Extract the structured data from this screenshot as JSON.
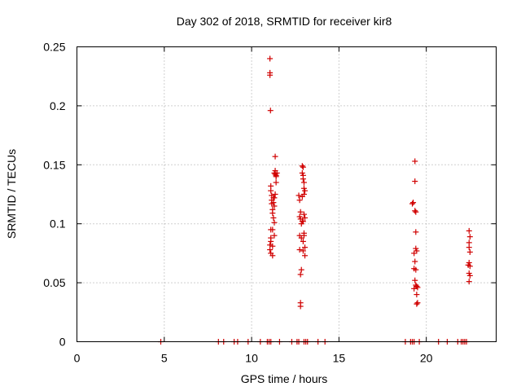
{
  "chart_data": {
    "type": "scatter",
    "title": "Day 302 of 2018, SRMTID for receiver kir8",
    "xlabel": "GPS time / hours",
    "ylabel": "SRMTID / TECUs",
    "xlim": [
      0,
      24
    ],
    "ylim": [
      0,
      0.25
    ],
    "xticks": [
      0,
      5,
      10,
      15,
      20
    ],
    "yticks": [
      0,
      0.05,
      0.1,
      0.15,
      0.2,
      0.25
    ],
    "xtick_labels": [
      "0",
      "5",
      "10",
      "15",
      "20"
    ],
    "ytick_labels": [
      "0",
      "0.05",
      "0.1",
      "0.15",
      "0.2",
      "0.25"
    ],
    "grid": true,
    "marker": "+",
    "color": "#d00000",
    "series": [
      {
        "name": "kir8",
        "points": [
          [
            4.8,
            0
          ],
          [
            8.1,
            0
          ],
          [
            8.4,
            0
          ],
          [
            9.0,
            0
          ],
          [
            9.2,
            0
          ],
          [
            9.8,
            0
          ],
          [
            10.5,
            0
          ],
          [
            10.9,
            0
          ],
          [
            11.0,
            0
          ],
          [
            11.1,
            0
          ],
          [
            11.6,
            0
          ],
          [
            12.3,
            0
          ],
          [
            12.6,
            0
          ],
          [
            12.7,
            0
          ],
          [
            13.0,
            0
          ],
          [
            13.1,
            0
          ],
          [
            13.2,
            0
          ],
          [
            13.8,
            0
          ],
          [
            14.2,
            0
          ],
          [
            18.8,
            0
          ],
          [
            19.1,
            0
          ],
          [
            19.2,
            0
          ],
          [
            19.3,
            0
          ],
          [
            19.6,
            0
          ],
          [
            20.7,
            0
          ],
          [
            21.2,
            0
          ],
          [
            21.8,
            0
          ],
          [
            22.0,
            0
          ],
          [
            22.1,
            0
          ],
          [
            22.2,
            0
          ],
          [
            22.3,
            0
          ],
          [
            11.05,
            0.24
          ],
          [
            11.05,
            0.228
          ],
          [
            11.05,
            0.226
          ],
          [
            11.08,
            0.196
          ],
          [
            11.1,
            0.132
          ],
          [
            11.1,
            0.128
          ],
          [
            11.15,
            0.124
          ],
          [
            11.15,
            0.12
          ],
          [
            11.15,
            0.117
          ],
          [
            11.2,
            0.112
          ],
          [
            11.2,
            0.109
          ],
          [
            11.1,
            0.095
          ],
          [
            11.1,
            0.088
          ],
          [
            11.1,
            0.085
          ],
          [
            11.05,
            0.082
          ],
          [
            11.05,
            0.078
          ],
          [
            11.1,
            0.075
          ],
          [
            11.2,
            0.073
          ],
          [
            11.25,
            0.122
          ],
          [
            11.25,
            0.118
          ],
          [
            11.3,
            0.115
          ],
          [
            11.25,
            0.105
          ],
          [
            11.3,
            0.101
          ],
          [
            11.2,
            0.095
          ],
          [
            11.3,
            0.09
          ],
          [
            11.35,
            0.157
          ],
          [
            11.35,
            0.145
          ],
          [
            11.3,
            0.143
          ],
          [
            11.35,
            0.142
          ],
          [
            11.4,
            0.141
          ],
          [
            11.4,
            0.14
          ],
          [
            11.45,
            0.143
          ],
          [
            11.4,
            0.135
          ],
          [
            11.35,
            0.125
          ],
          [
            11.3,
            0.122
          ],
          [
            11.2,
            0.081
          ],
          [
            12.7,
            0.124
          ],
          [
            12.75,
            0.12
          ],
          [
            12.8,
            0.11
          ],
          [
            12.75,
            0.106
          ],
          [
            12.8,
            0.104
          ],
          [
            12.9,
            0.102
          ],
          [
            12.85,
            0.1
          ],
          [
            12.75,
            0.09
          ],
          [
            12.85,
            0.088
          ],
          [
            12.95,
            0.085
          ],
          [
            12.75,
            0.078
          ],
          [
            12.85,
            0.061
          ],
          [
            12.8,
            0.057
          ],
          [
            12.8,
            0.033
          ],
          [
            12.8,
            0.03
          ],
          [
            12.9,
            0.149
          ],
          [
            12.95,
            0.148
          ],
          [
            12.9,
            0.143
          ],
          [
            12.95,
            0.141
          ],
          [
            12.95,
            0.138
          ],
          [
            13.0,
            0.135
          ],
          [
            13.0,
            0.13
          ],
          [
            13.05,
            0.128
          ],
          [
            13.0,
            0.125
          ],
          [
            12.9,
            0.123
          ],
          [
            13.0,
            0.108
          ],
          [
            13.05,
            0.105
          ],
          [
            12.95,
            0.102
          ],
          [
            13.0,
            0.092
          ],
          [
            13.0,
            0.09
          ],
          [
            13.05,
            0.08
          ],
          [
            12.95,
            0.077
          ],
          [
            13.05,
            0.073
          ],
          [
            19.35,
            0.153
          ],
          [
            19.35,
            0.136
          ],
          [
            19.25,
            0.118
          ],
          [
            19.2,
            0.117
          ],
          [
            19.35,
            0.111
          ],
          [
            19.4,
            0.11
          ],
          [
            19.4,
            0.093
          ],
          [
            19.4,
            0.079
          ],
          [
            19.45,
            0.077
          ],
          [
            19.3,
            0.075
          ],
          [
            19.35,
            0.068
          ],
          [
            19.3,
            0.062
          ],
          [
            19.4,
            0.061
          ],
          [
            19.35,
            0.052
          ],
          [
            19.4,
            0.048
          ],
          [
            19.45,
            0.047
          ],
          [
            19.5,
            0.046
          ],
          [
            19.3,
            0.045
          ],
          [
            19.45,
            0.04
          ],
          [
            19.5,
            0.033
          ],
          [
            19.45,
            0.032
          ],
          [
            22.45,
            0.094
          ],
          [
            22.5,
            0.089
          ],
          [
            22.45,
            0.084
          ],
          [
            22.45,
            0.08
          ],
          [
            22.5,
            0.076
          ],
          [
            22.45,
            0.067
          ],
          [
            22.4,
            0.065
          ],
          [
            22.5,
            0.064
          ],
          [
            22.45,
            0.058
          ],
          [
            22.5,
            0.056
          ],
          [
            22.45,
            0.051
          ]
        ]
      }
    ]
  }
}
